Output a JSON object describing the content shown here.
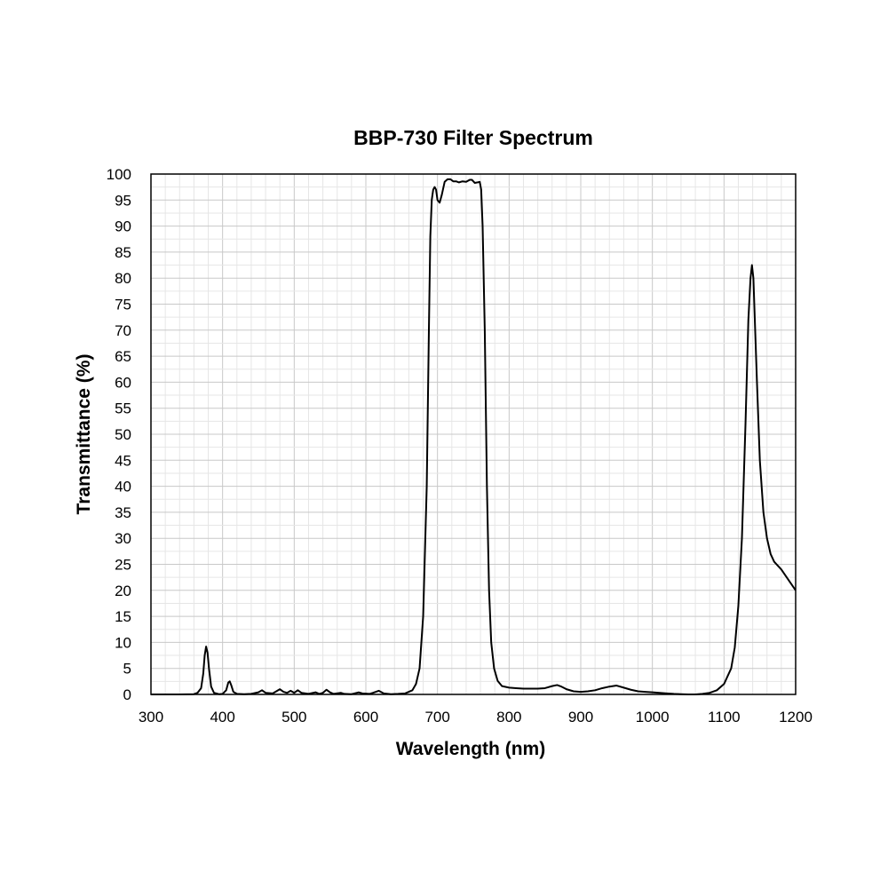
{
  "chart_data": {
    "type": "line",
    "title": "BBP-730 Filter Spectrum",
    "xlabel": "Wavelength (nm)",
    "ylabel": "Transmittance (%)",
    "xlim": [
      300,
      1200
    ],
    "ylim": [
      0,
      100
    ],
    "x_major_ticks": [
      300,
      400,
      500,
      600,
      700,
      800,
      900,
      1000,
      1100,
      1200
    ],
    "y_major_ticks": [
      0,
      5,
      10,
      15,
      20,
      25,
      30,
      35,
      40,
      45,
      50,
      55,
      60,
      65,
      70,
      75,
      80,
      85,
      90,
      95,
      100
    ],
    "x_minor_step": 20,
    "y_minor_step": 2.5,
    "grid": true,
    "legend": "none",
    "line_color": "#000000",
    "series": [
      {
        "points": [
          [
            300,
            0
          ],
          [
            340,
            0
          ],
          [
            360,
            0.05
          ],
          [
            365,
            0.3
          ],
          [
            370,
            1.2
          ],
          [
            373,
            4
          ],
          [
            375,
            7.5
          ],
          [
            377,
            9.2
          ],
          [
            379,
            8
          ],
          [
            381,
            5
          ],
          [
            384,
            1.5
          ],
          [
            388,
            0.3
          ],
          [
            395,
            0.05
          ],
          [
            400,
            0.1
          ],
          [
            405,
            0.8
          ],
          [
            408,
            2.3
          ],
          [
            410,
            2.5
          ],
          [
            412,
            1.8
          ],
          [
            415,
            0.5
          ],
          [
            420,
            0.1
          ],
          [
            430,
            0.05
          ],
          [
            440,
            0.1
          ],
          [
            450,
            0.4
          ],
          [
            455,
            0.8
          ],
          [
            460,
            0.3
          ],
          [
            470,
            0.2
          ],
          [
            475,
            0.6
          ],
          [
            480,
            1.0
          ],
          [
            485,
            0.5
          ],
          [
            490,
            0.3
          ],
          [
            495,
            0.7
          ],
          [
            500,
            0.3
          ],
          [
            505,
            0.8
          ],
          [
            510,
            0.3
          ],
          [
            520,
            0.1
          ],
          [
            530,
            0.4
          ],
          [
            535,
            0.1
          ],
          [
            540,
            0.3
          ],
          [
            545,
            0.9
          ],
          [
            550,
            0.4
          ],
          [
            555,
            0.1
          ],
          [
            565,
            0.3
          ],
          [
            570,
            0.1
          ],
          [
            580,
            0.05
          ],
          [
            590,
            0.4
          ],
          [
            595,
            0.2
          ],
          [
            605,
            0.1
          ],
          [
            610,
            0.3
          ],
          [
            618,
            0.7
          ],
          [
            625,
            0.2
          ],
          [
            635,
            0.05
          ],
          [
            645,
            0.1
          ],
          [
            655,
            0.2
          ],
          [
            665,
            0.8
          ],
          [
            670,
            2.0
          ],
          [
            675,
            5.0
          ],
          [
            680,
            15
          ],
          [
            685,
            40
          ],
          [
            688,
            70
          ],
          [
            690,
            88
          ],
          [
            692,
            95
          ],
          [
            694,
            97
          ],
          [
            696,
            97.5
          ],
          [
            698,
            97
          ],
          [
            700,
            95
          ],
          [
            703,
            94.5
          ],
          [
            706,
            96
          ],
          [
            710,
            98.5
          ],
          [
            714,
            99
          ],
          [
            718,
            99
          ],
          [
            722,
            98.6
          ],
          [
            726,
            98.6
          ],
          [
            730,
            98.4
          ],
          [
            735,
            98.6
          ],
          [
            740,
            98.5
          ],
          [
            745,
            98.9
          ],
          [
            748,
            98.9
          ],
          [
            752,
            98.3
          ],
          [
            756,
            98.4
          ],
          [
            759,
            98.5
          ],
          [
            761,
            97
          ],
          [
            763,
            90
          ],
          [
            766,
            70
          ],
          [
            769,
            40
          ],
          [
            772,
            20
          ],
          [
            775,
            10
          ],
          [
            779,
            5
          ],
          [
            784,
            2.6
          ],
          [
            790,
            1.6
          ],
          [
            800,
            1.3
          ],
          [
            810,
            1.2
          ],
          [
            820,
            1.1
          ],
          [
            830,
            1.1
          ],
          [
            840,
            1.1
          ],
          [
            850,
            1.2
          ],
          [
            860,
            1.6
          ],
          [
            867,
            1.8
          ],
          [
            873,
            1.5
          ],
          [
            880,
            1.0
          ],
          [
            890,
            0.6
          ],
          [
            900,
            0.5
          ],
          [
            910,
            0.6
          ],
          [
            920,
            0.8
          ],
          [
            930,
            1.2
          ],
          [
            940,
            1.5
          ],
          [
            950,
            1.7
          ],
          [
            960,
            1.3
          ],
          [
            970,
            0.9
          ],
          [
            980,
            0.6
          ],
          [
            990,
            0.5
          ],
          [
            1000,
            0.4
          ],
          [
            1010,
            0.3
          ],
          [
            1020,
            0.2
          ],
          [
            1030,
            0.1
          ],
          [
            1040,
            0.05
          ],
          [
            1050,
            0
          ],
          [
            1060,
            0
          ],
          [
            1070,
            0.1
          ],
          [
            1080,
            0.3
          ],
          [
            1090,
            0.8
          ],
          [
            1100,
            2.0
          ],
          [
            1110,
            5.0
          ],
          [
            1115,
            9
          ],
          [
            1120,
            17
          ],
          [
            1125,
            30
          ],
          [
            1130,
            52
          ],
          [
            1134,
            72
          ],
          [
            1137,
            80
          ],
          [
            1139,
            82.5
          ],
          [
            1141,
            80
          ],
          [
            1143,
            72
          ],
          [
            1146,
            60
          ],
          [
            1150,
            45
          ],
          [
            1155,
            35
          ],
          [
            1160,
            30
          ],
          [
            1165,
            27
          ],
          [
            1170,
            25.5
          ],
          [
            1180,
            24
          ],
          [
            1190,
            22
          ],
          [
            1200,
            20
          ]
        ]
      }
    ]
  }
}
